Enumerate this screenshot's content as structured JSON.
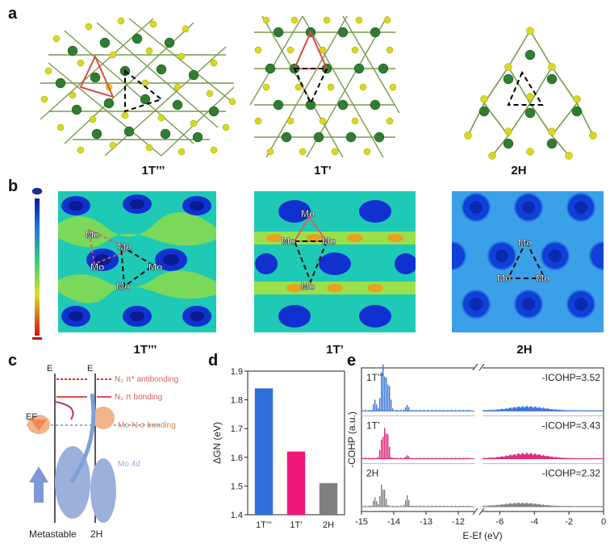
{
  "panels": {
    "a": {
      "label": "a",
      "structures": [
        "1T’’’",
        "1T’",
        "2H"
      ]
    },
    "b": {
      "label": "b",
      "structures": [
        "1T’’’",
        "1T’",
        "2H"
      ],
      "atom_label": "Mo"
    },
    "c": {
      "label": "c",
      "e_left": "E",
      "e_right": "E",
      "ef": "EF",
      "levels": [
        "N₂ π* antibonding",
        "N₂ π bonding",
        "Mo-N σ bonding",
        "Mo 4d"
      ],
      "bottom_labels": [
        "Metastable",
        "2H"
      ]
    },
    "d": {
      "label": "d"
    },
    "e": {
      "label": "e",
      "ylabel": "-COHP (a.u.)",
      "xlabel": "E-Ef (eV)",
      "rows": [
        {
          "name": "1T’’’",
          "icohp": "-ICOHP=3.52",
          "color": "#3a75d8"
        },
        {
          "name": "1T’",
          "icohp": "-ICOHP=3.43",
          "color": "#e0267a"
        },
        {
          "name": "2H",
          "icohp": "-ICOHP=2.32",
          "color": "#808080"
        }
      ],
      "ticks": [
        "-15",
        "-14",
        "-13",
        "-12",
        "-6",
        "-4",
        "-2",
        "0"
      ]
    }
  },
  "colors": {
    "mo": "#2e7d32",
    "s": "#d8d820",
    "bar1": "#2f6fdb",
    "bar2": "#f0177a",
    "bar3": "#7f7f7f"
  },
  "chart_data": {
    "type": "bar",
    "categories": [
      "1T’’’",
      "1T’",
      "2H"
    ],
    "values": [
      1.84,
      1.62,
      1.51
    ],
    "ylabel": "ΔGN (eV)",
    "ylim": [
      1.4,
      1.9
    ],
    "yticks": [
      1.4,
      1.5,
      1.6,
      1.7,
      1.8,
      1.9
    ]
  }
}
